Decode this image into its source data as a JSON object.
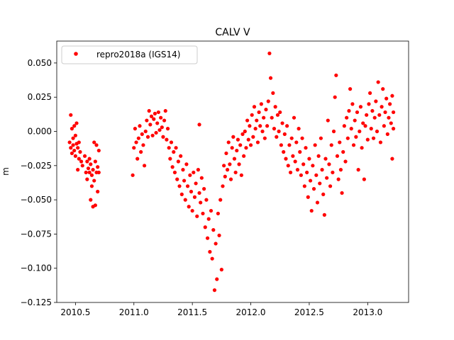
{
  "chart_data": {
    "type": "scatter",
    "title": "CALV V",
    "xlabel": "",
    "ylabel": "m",
    "xlim": [
      2010.34,
      2013.35
    ],
    "ylim": [
      -0.125,
      0.066
    ],
    "x_ticks": [
      2010.5,
      2011.0,
      2011.5,
      2012.0,
      2012.5,
      2013.0
    ],
    "x_tick_labels": [
      "2010.5",
      "2011.0",
      "2011.5",
      "2012.0",
      "2012.5",
      "2013.0"
    ],
    "y_ticks": [
      0.05,
      0.025,
      0.0,
      -0.025,
      -0.05,
      -0.075,
      -0.1,
      -0.125
    ],
    "y_tick_labels": [
      "0.050",
      "0.025",
      "0.000",
      "−0.025",
      "−0.050",
      "−0.075",
      "−0.100",
      "−0.125"
    ],
    "grid": false,
    "legend_position": "top-left",
    "series": [
      {
        "name": "repro2018a (IGS14)",
        "color": "#ff0000",
        "marker": "circle",
        "points": [
          [
            2010.45,
            -0.008
          ],
          [
            2010.46,
            0.012
          ],
          [
            2010.46,
            -0.012
          ],
          [
            2010.47,
            0.002
          ],
          [
            2010.47,
            -0.016
          ],
          [
            2010.48,
            -0.005
          ],
          [
            2010.48,
            -0.01
          ],
          [
            2010.49,
            0.004
          ],
          [
            2010.49,
            -0.014
          ],
          [
            2010.5,
            -0.003
          ],
          [
            2010.5,
            -0.018
          ],
          [
            2010.51,
            -0.009
          ],
          [
            2010.51,
            0.006
          ],
          [
            2010.52,
            -0.012
          ],
          [
            2010.52,
            -0.028
          ],
          [
            2010.53,
            -0.02
          ],
          [
            2010.53,
            -0.008
          ],
          [
            2010.54,
            -0.015
          ],
          [
            2010.55,
            -0.022
          ],
          [
            2010.56,
            -0.025
          ],
          [
            2010.58,
            -0.018
          ],
          [
            2010.59,
            -0.03
          ],
          [
            2010.6,
            -0.022
          ],
          [
            2010.6,
            -0.035
          ],
          [
            2010.61,
            -0.027
          ],
          [
            2010.62,
            -0.03
          ],
          [
            2010.62,
            -0.02
          ],
          [
            2010.63,
            -0.05
          ],
          [
            2010.63,
            -0.024
          ],
          [
            2010.64,
            -0.032
          ],
          [
            2010.64,
            -0.04
          ],
          [
            2010.65,
            -0.055
          ],
          [
            2010.65,
            -0.028
          ],
          [
            2010.66,
            -0.008
          ],
          [
            2010.66,
            -0.036
          ],
          [
            2010.67,
            -0.054
          ],
          [
            2010.67,
            -0.022
          ],
          [
            2010.68,
            -0.03
          ],
          [
            2010.68,
            -0.01
          ],
          [
            2010.69,
            -0.026
          ],
          [
            2010.69,
            -0.044
          ],
          [
            2010.7,
            -0.014
          ],
          [
            2010.7,
            -0.03
          ],
          [
            2010.99,
            -0.032
          ],
          [
            2011.0,
            -0.012
          ],
          [
            2011.01,
            0.002
          ],
          [
            2011.02,
            -0.008
          ],
          [
            2011.03,
            -0.02
          ],
          [
            2011.04,
            -0.005
          ],
          [
            2011.05,
            0.004
          ],
          [
            2011.06,
            -0.015
          ],
          [
            2011.07,
            -0.002
          ],
          [
            2011.08,
            -0.01
          ],
          [
            2011.09,
            -0.025
          ],
          [
            2011.1,
            0.0
          ],
          [
            2011.11,
            0.008
          ],
          [
            2011.12,
            -0.004
          ],
          [
            2011.13,
            0.015
          ],
          [
            2011.14,
            0.005
          ],
          [
            2011.15,
            0.011
          ],
          [
            2011.16,
            -0.003
          ],
          [
            2011.17,
            0.009
          ],
          [
            2011.18,
            0.013
          ],
          [
            2011.19,
            -0.001
          ],
          [
            2011.2,
            0.006
          ],
          [
            2011.21,
            0.014
          ],
          [
            2011.22,
            0.001
          ],
          [
            2011.23,
            0.01
          ],
          [
            2011.24,
            0.003
          ],
          [
            2011.25,
            -0.004
          ],
          [
            2011.26,
            0.008
          ],
          [
            2011.27,
            0.015
          ],
          [
            2011.28,
            -0.006
          ],
          [
            2011.29,
            0.002
          ],
          [
            2011.3,
            -0.012
          ],
          [
            2011.31,
            -0.02
          ],
          [
            2011.32,
            -0.008
          ],
          [
            2011.33,
            -0.026
          ],
          [
            2011.34,
            -0.015
          ],
          [
            2011.35,
            -0.03
          ],
          [
            2011.36,
            -0.012
          ],
          [
            2011.37,
            -0.035
          ],
          [
            2011.38,
            -0.022
          ],
          [
            2011.39,
            -0.04
          ],
          [
            2011.4,
            -0.018
          ],
          [
            2011.41,
            -0.046
          ],
          [
            2011.42,
            -0.028
          ],
          [
            2011.43,
            -0.036
          ],
          [
            2011.44,
            -0.05
          ],
          [
            2011.45,
            -0.024
          ],
          [
            2011.46,
            -0.04
          ],
          [
            2011.47,
            -0.055
          ],
          [
            2011.48,
            -0.032
          ],
          [
            2011.49,
            -0.044
          ],
          [
            2011.5,
            -0.058
          ],
          [
            2011.51,
            -0.03
          ],
          [
            2011.52,
            -0.048
          ],
          [
            2011.53,
            -0.038
          ],
          [
            2011.54,
            -0.062
          ],
          [
            2011.55,
            -0.028
          ],
          [
            2011.56,
            -0.045
          ],
          [
            2011.56,
            0.005
          ],
          [
            2011.57,
            -0.052
          ],
          [
            2011.58,
            -0.034
          ],
          [
            2011.59,
            -0.06
          ],
          [
            2011.6,
            -0.042
          ],
          [
            2011.61,
            -0.07
          ],
          [
            2011.62,
            -0.05
          ],
          [
            2011.63,
            -0.078
          ],
          [
            2011.64,
            -0.064
          ],
          [
            2011.65,
            -0.088
          ],
          [
            2011.66,
            -0.058
          ],
          [
            2011.67,
            -0.093
          ],
          [
            2011.68,
            -0.072
          ],
          [
            2011.69,
            -0.116
          ],
          [
            2011.7,
            -0.082
          ],
          [
            2011.71,
            -0.108
          ],
          [
            2011.72,
            -0.06
          ],
          [
            2011.73,
            -0.076
          ],
          [
            2011.74,
            -0.05
          ],
          [
            2011.75,
            -0.101
          ],
          [
            2011.76,
            -0.04
          ],
          [
            2011.77,
            -0.025
          ],
          [
            2011.78,
            -0.033
          ],
          [
            2011.79,
            -0.016
          ],
          [
            2011.8,
            -0.028
          ],
          [
            2011.81,
            -0.008
          ],
          [
            2011.82,
            -0.024
          ],
          [
            2011.83,
            -0.035
          ],
          [
            2011.84,
            -0.012
          ],
          [
            2011.85,
            -0.004
          ],
          [
            2011.86,
            -0.02
          ],
          [
            2011.87,
            -0.03
          ],
          [
            2011.88,
            -0.014
          ],
          [
            2011.89,
            -0.006
          ],
          [
            2011.9,
            -0.024
          ],
          [
            2011.91,
            -0.01
          ],
          [
            2011.92,
            -0.032
          ],
          [
            2011.93,
            -0.002
          ],
          [
            2011.94,
            -0.018
          ],
          [
            2011.95,
            0.0
          ],
          [
            2011.96,
            -0.012
          ],
          [
            2011.97,
            0.008
          ],
          [
            2011.98,
            -0.006
          ],
          [
            2011.99,
            0.004
          ],
          [
            2012.0,
            -0.01
          ],
          [
            2012.01,
            0.012
          ],
          [
            2012.02,
            -0.004
          ],
          [
            2012.03,
            0.018
          ],
          [
            2012.04,
            0.002
          ],
          [
            2012.05,
            0.008
          ],
          [
            2012.06,
            -0.008
          ],
          [
            2012.07,
            0.014
          ],
          [
            2012.08,
            0.004
          ],
          [
            2012.09,
            0.02
          ],
          [
            2012.1,
            0.0
          ],
          [
            2012.11,
            0.01
          ],
          [
            2012.12,
            -0.005
          ],
          [
            2012.13,
            0.016
          ],
          [
            2012.14,
            0.004
          ],
          [
            2012.15,
            0.022
          ],
          [
            2012.16,
            0.057
          ],
          [
            2012.17,
            0.039
          ],
          [
            2012.18,
            0.01
          ],
          [
            2012.19,
            0.028
          ],
          [
            2012.2,
            0.002
          ],
          [
            2012.21,
            0.018
          ],
          [
            2012.22,
            -0.004
          ],
          [
            2012.23,
            0.012
          ],
          [
            2012.24,
            0.0
          ],
          [
            2012.25,
            0.014
          ],
          [
            2012.26,
            -0.01
          ],
          [
            2012.27,
            0.006
          ],
          [
            2012.28,
            -0.015
          ],
          [
            2012.29,
            -0.002
          ],
          [
            2012.3,
            -0.02
          ],
          [
            2012.31,
            0.004
          ],
          [
            2012.32,
            -0.025
          ],
          [
            2012.33,
            -0.01
          ],
          [
            2012.34,
            -0.03
          ],
          [
            2012.35,
            -0.005
          ],
          [
            2012.36,
            -0.018
          ],
          [
            2012.37,
            0.01
          ],
          [
            2012.38,
            -0.022
          ],
          [
            2012.39,
            -0.008
          ],
          [
            2012.4,
            -0.028
          ],
          [
            2012.41,
            0.002
          ],
          [
            2012.42,
            -0.015
          ],
          [
            2012.43,
            -0.032
          ],
          [
            2012.44,
            -0.005
          ],
          [
            2012.45,
            -0.024
          ],
          [
            2012.46,
            -0.04
          ],
          [
            2012.47,
            -0.012
          ],
          [
            2012.48,
            -0.03
          ],
          [
            2012.49,
            -0.048
          ],
          [
            2012.5,
            -0.02
          ],
          [
            2012.51,
            -0.036
          ],
          [
            2012.52,
            -0.058
          ],
          [
            2012.53,
            -0.025
          ],
          [
            2012.54,
            -0.042
          ],
          [
            2012.55,
            -0.01
          ],
          [
            2012.56,
            -0.032
          ],
          [
            2012.57,
            -0.052
          ],
          [
            2012.58,
            -0.018
          ],
          [
            2012.59,
            -0.038
          ],
          [
            2012.6,
            -0.005
          ],
          [
            2012.61,
            -0.028
          ],
          [
            2012.62,
            -0.046
          ],
          [
            2012.63,
            -0.061
          ],
          [
            2012.64,
            -0.02
          ],
          [
            2012.65,
            -0.034
          ],
          [
            2012.66,
            0.008
          ],
          [
            2012.67,
            -0.024
          ],
          [
            2012.68,
            -0.04
          ],
          [
            2012.69,
            -0.01
          ],
          [
            2012.7,
            -0.03
          ],
          [
            2012.71,
            0.0
          ],
          [
            2012.72,
            0.025
          ],
          [
            2012.73,
            0.041
          ],
          [
            2012.74,
            -0.018
          ],
          [
            2012.75,
            -0.035
          ],
          [
            2012.76,
            -0.008
          ],
          [
            2012.77,
            -0.028
          ],
          [
            2012.78,
            -0.045
          ],
          [
            2012.79,
            -0.015
          ],
          [
            2012.8,
            0.004
          ],
          [
            2012.81,
            -0.022
          ],
          [
            2012.82,
            0.01
          ],
          [
            2012.83,
            -0.005
          ],
          [
            2012.84,
            0.015
          ],
          [
            2012.85,
            0.031
          ],
          [
            2012.86,
            0.002
          ],
          [
            2012.87,
            0.02
          ],
          [
            2012.88,
            -0.01
          ],
          [
            2012.89,
            0.008
          ],
          [
            2012.9,
            -0.004
          ],
          [
            2012.91,
            0.014
          ],
          [
            2012.92,
            -0.028
          ],
          [
            2012.93,
            0.0
          ],
          [
            2012.94,
            0.018
          ],
          [
            2012.95,
            -0.012
          ],
          [
            2012.96,
            0.006
          ],
          [
            2012.97,
            -0.035
          ],
          [
            2012.98,
            0.004
          ],
          [
            2012.99,
            0.012
          ],
          [
            2013.0,
            -0.006
          ],
          [
            2013.01,
            0.02
          ],
          [
            2013.02,
            0.028
          ],
          [
            2013.03,
            0.002
          ],
          [
            2013.04,
            0.015
          ],
          [
            2013.05,
            -0.005
          ],
          [
            2013.06,
            0.01
          ],
          [
            2013.07,
            0.022
          ],
          [
            2013.08,
            0.0
          ],
          [
            2013.09,
            0.036
          ],
          [
            2013.1,
            0.012
          ],
          [
            2013.11,
            -0.008
          ],
          [
            2013.12,
            0.018
          ],
          [
            2013.13,
            0.031
          ],
          [
            2013.14,
            0.004
          ],
          [
            2013.15,
            0.014
          ],
          [
            2013.16,
            0.024
          ],
          [
            2013.17,
            -0.002
          ],
          [
            2013.18,
            0.01
          ],
          [
            2013.19,
            0.02
          ],
          [
            2013.2,
            0.006
          ],
          [
            2013.21,
            0.026
          ],
          [
            2013.21,
            -0.02
          ],
          [
            2013.22,
            0.014
          ],
          [
            2013.22,
            0.002
          ]
        ]
      }
    ]
  }
}
